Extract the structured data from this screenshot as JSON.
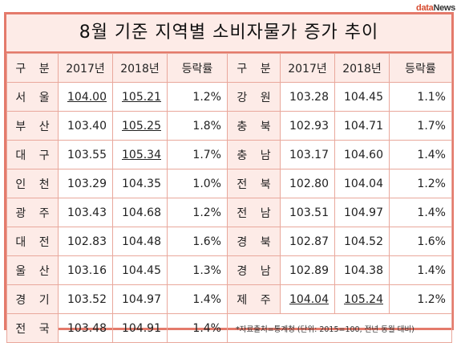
{
  "logo": {
    "prefix": "data",
    "suffix": "News"
  },
  "title": "8월 기준 지역별 소비자물가 증가 추이",
  "headers": {
    "region": "구 분",
    "y2017": "2017년",
    "y2018": "2018년",
    "rate": "등락률"
  },
  "left_rows": [
    {
      "region": "서 울",
      "y2017": "104.00",
      "y2018": "105.21",
      "rate": "1.2%"
    },
    {
      "region": "부 산",
      "y2017": "103.40",
      "y2018": "105.25",
      "rate": "1.8%"
    },
    {
      "region": "대 구",
      "y2017": "103.55",
      "y2018": "105.34",
      "rate": "1.7%"
    },
    {
      "region": "인 천",
      "y2017": "103.29",
      "y2018": "104.35",
      "rate": "1.0%"
    },
    {
      "region": "광 주",
      "y2017": "103.43",
      "y2018": "104.68",
      "rate": "1.2%"
    },
    {
      "region": "대 전",
      "y2017": "102.83",
      "y2018": "104.48",
      "rate": "1.6%"
    },
    {
      "region": "울 산",
      "y2017": "103.16",
      "y2018": "104.45",
      "rate": "1.3%"
    },
    {
      "region": "경 기",
      "y2017": "103.52",
      "y2018": "104.97",
      "rate": "1.4%"
    }
  ],
  "right_rows": [
    {
      "region": "강 원",
      "y2017": "103.28",
      "y2018": "104.45",
      "rate": "1.1%"
    },
    {
      "region": "충 북",
      "y2017": "102.93",
      "y2018": "104.71",
      "rate": "1.7%"
    },
    {
      "region": "충 남",
      "y2017": "103.17",
      "y2018": "104.60",
      "rate": "1.4%"
    },
    {
      "region": "전 북",
      "y2017": "102.80",
      "y2018": "104.04",
      "rate": "1.2%"
    },
    {
      "region": "전 남",
      "y2017": "103.51",
      "y2018": "104.97",
      "rate": "1.4%"
    },
    {
      "region": "경 북",
      "y2017": "102.87",
      "y2018": "104.52",
      "rate": "1.6%"
    },
    {
      "region": "경 남",
      "y2017": "102.89",
      "y2018": "104.38",
      "rate": "1.4%"
    },
    {
      "region": "제 주",
      "y2017": "104.04",
      "y2018": "105.24",
      "rate": "1.2%"
    }
  ],
  "total_row": {
    "region": "전 국",
    "y2017": "103.48",
    "y2018": "104.91",
    "rate": "1.4%"
  },
  "note": "*자료출처=통계청  (단위: 2015=100, 전년 동월 대비)"
}
